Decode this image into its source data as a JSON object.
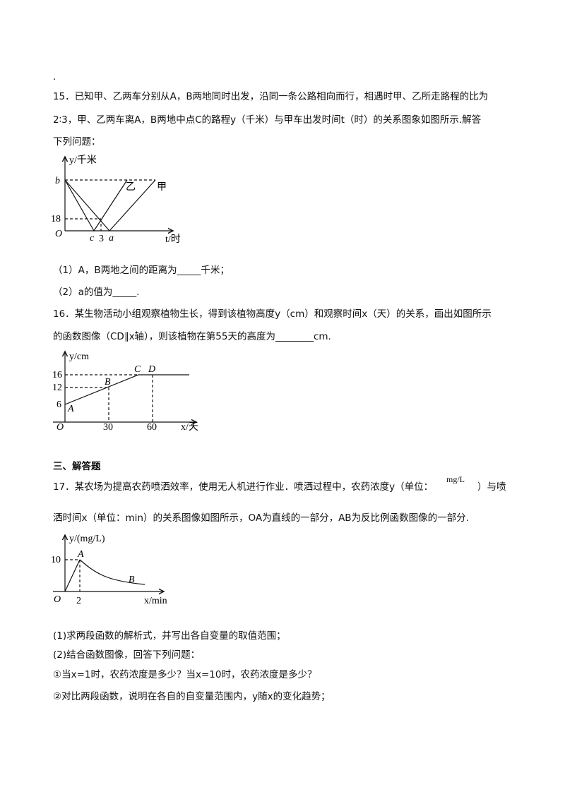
{
  "top_mark": ".",
  "q15": {
    "lines": [
      "15．已知甲、乙两车分别从A，B两地同时出发，沿同一条公路相向而行，相遇时甲、乙所走路程的比为",
      "2∶3，甲、乙两车离A，B两地中点C的路程y（千米）与甲车出发时间t（时）的关系图象如图所示.解答",
      "下列问题："
    ],
    "figure": {
      "y_axis": "y/千米",
      "x_axis": "t/时",
      "b": "b",
      "tick_18": "18",
      "origin": "O",
      "c": "c",
      "tick_3": "3",
      "a": "a",
      "yi": "乙",
      "jia": "甲"
    },
    "parts": [
      "（1）A，B两地之间的距离为_____千米；",
      "（2）a的值为_____."
    ]
  },
  "q16": {
    "lines": [
      "16．某生物活动小组观察植物生长，得到该植物高度y（cm）和观察时间x（天）的关系，画出如图所示",
      "的函数图像（CD∥x轴），则该植物在第55天的高度为________cm."
    ],
    "figure": {
      "y_axis": "y/cm",
      "x_axis": "x/天",
      "tick_16": "16",
      "tick_12": "12",
      "tick_6": "6",
      "origin": "O",
      "tick_30": "30",
      "tick_60": "60",
      "A": "A",
      "B": "B",
      "C": "C",
      "D": "D"
    }
  },
  "section": "三、解答题",
  "q17": {
    "lines": [
      "17．某农场为提高农药喷洒效率，使用无人机进行作业．喷洒过程中，农药浓度y（单位：",
      "）与喷",
      "洒时间x（单位：min）的关系图像如图所示，OA为直线的一部分，AB为反比例函数图像的一部分."
    ],
    "unit": "mg/L",
    "figure": {
      "y_axis": "y/(mg/L)",
      "x_axis": "x/min",
      "tick_10": "10",
      "A": "A",
      "B": "B",
      "origin": "O",
      "tick_2": "2"
    },
    "parts": [
      "(1)求两段函数的解析式，并写出各自变量的取值范围；",
      "(2)结合函数图像，回答下列问题：",
      "①当x=1时，农药浓度是多少？当x=10时，农药浓度是多少？",
      "②对比两段函数，说明在各自的自变量范围内，y随x的变化趋势；"
    ]
  }
}
